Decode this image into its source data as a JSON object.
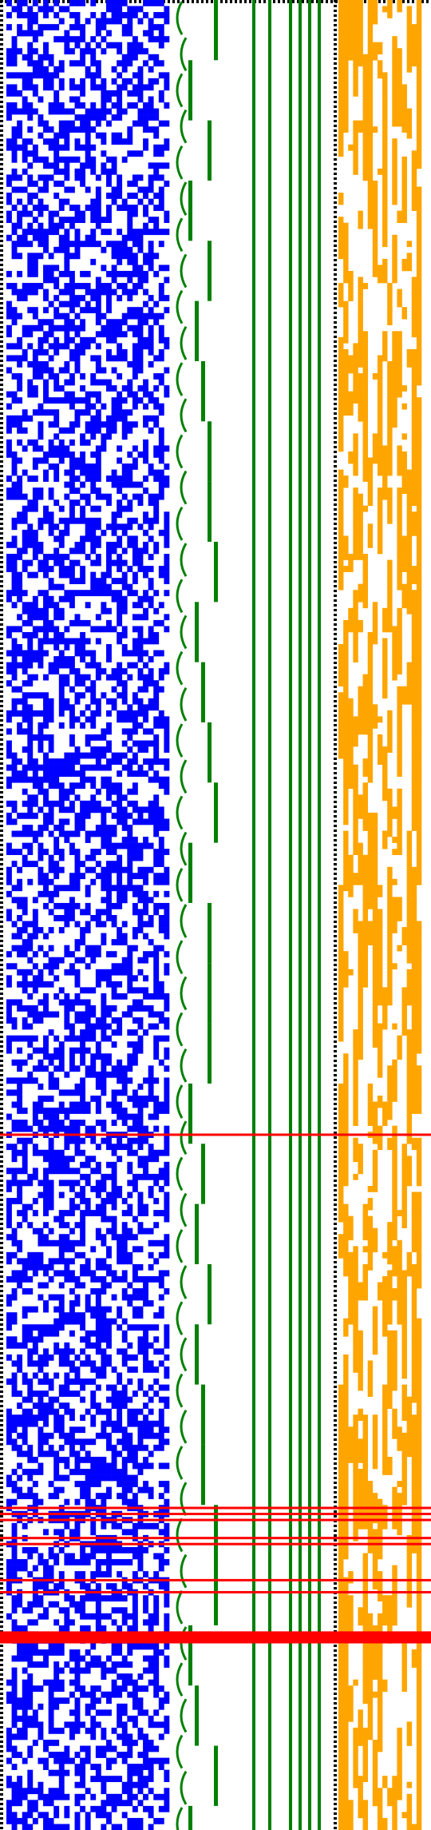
{
  "visualization": {
    "type": "bitmap-pattern",
    "background": "#ffffff",
    "rows": 304,
    "columns": {
      "blue_field": 31,
      "orange_field": 17
    },
    "colors": {
      "blue": "#0000ff",
      "green": "#008000",
      "orange": "#ffa500",
      "red": "#ff0000",
      "border": "#000000"
    },
    "blue_fill_ratio": 0.5,
    "orange_fill_ratio": 0.45,
    "red_marker_rows": [
      188,
      250,
      251,
      252,
      255,
      256,
      262,
      264
    ],
    "red_band_rows": [
      271,
      272
    ]
  }
}
